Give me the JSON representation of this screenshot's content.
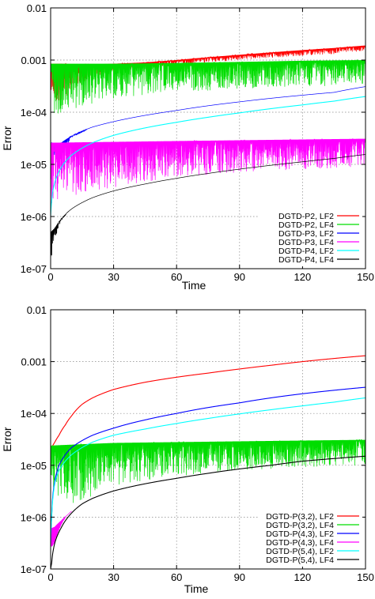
{
  "chart_data": [
    {
      "type": "line",
      "xlabel": "Time",
      "ylabel": "Error",
      "yscale": "log",
      "xlim": [
        0,
        150
      ],
      "ylim": [
        1e-07,
        0.01
      ],
      "grid": true,
      "legend_position": "bottom-right",
      "x_ticks": [
        "0",
        "30",
        "60",
        "90",
        "120",
        "150"
      ],
      "y_ticks": [
        "1e-07",
        "1e-06",
        "1e-05",
        "1e-04",
        "0.001",
        "0.01"
      ],
      "series": [
        {
          "name": "DGTD-P2, LF2",
          "color": "#ff0000",
          "x": [
            0,
            5,
            15,
            30,
            45,
            60,
            75,
            90,
            105,
            120,
            135,
            150
          ],
          "y": [
            0.00085,
            0.00085,
            0.00082,
            0.00085,
            0.0009,
            0.001,
            0.00113,
            0.00126,
            0.0014,
            0.00155,
            0.0017,
            0.0019
          ],
          "band_min": [
            0.0001,
            0.00015,
            0.00035,
            0.0006,
            0.0007,
            0.0008,
            0.0009,
            0.001,
            0.0011,
            0.0012,
            0.0013,
            0.0015
          ]
        },
        {
          "name": "DGTD-P2, LF4",
          "color": "#00dd00",
          "x": [
            0,
            15,
            30,
            60,
            90,
            120,
            150
          ],
          "y": [
            0.00085,
            0.00085,
            0.00085,
            0.00088,
            0.00092,
            0.00097,
            0.001
          ],
          "band_min": [
            8e-05,
            0.00013,
            0.00018,
            0.00024,
            0.00028,
            0.00031,
            0.00033
          ]
        },
        {
          "name": "DGTD-P3, LF2",
          "color": "#0000ff",
          "x": [
            0,
            5,
            10,
            20,
            30,
            45,
            60,
            75,
            90,
            105,
            120,
            135,
            150
          ],
          "y": [
            2.6e-05,
            2.6e-05,
            3.5e-05,
            5.2e-05,
            6.6e-05,
            8.7e-05,
            0.000108,
            0.000133,
            0.000158,
            0.000185,
            0.000212,
            0.00024,
            0.00031
          ],
          "band_min": [
            1.2e-05,
            1.3e-05,
            3.2e-05,
            5e-05,
            6.5e-05,
            8.6e-05,
            0.000107,
            0.000132,
            0.000157,
            0.000184,
            0.000211,
            0.000239,
            0.00031
          ]
        },
        {
          "name": "DGTD-P3, LF4",
          "color": "#ff00ff",
          "x": [
            0,
            30,
            60,
            90,
            120,
            150
          ],
          "y": [
            2.6e-05,
            2.7e-05,
            2.8e-05,
            2.9e-05,
            3e-05,
            3.1e-05
          ],
          "band_min": [
            1.6e-06,
            3.5e-06,
            5.5e-06,
            7e-06,
            8e-06,
            9e-06
          ]
        },
        {
          "name": "DGTD-P4, LF2",
          "color": "#00ffff",
          "x": [
            0,
            1,
            3,
            6,
            10,
            20,
            30,
            45,
            60,
            75,
            90,
            105,
            120,
            135,
            150
          ],
          "y": [
            1e-06,
            3e-06,
            6e-06,
            1e-05,
            1.5e-05,
            2.6e-05,
            3.6e-05,
            5e-05,
            6.4e-05,
            8e-05,
            9.7e-05,
            0.000117,
            0.000138,
            0.000163,
            0.0002
          ]
        },
        {
          "name": "DGTD-P4, LF4",
          "color": "#000000",
          "x": [
            0,
            2,
            5,
            10,
            20,
            30,
            45,
            60,
            75,
            90,
            105,
            120,
            135,
            150
          ],
          "y": [
            5e-07,
            6e-07,
            9e-07,
            1.4e-06,
            2.3e-06,
            3.1e-06,
            4.2e-06,
            5.4e-06,
            6.7e-06,
            8.1e-06,
            9.6e-06,
            1.12e-05,
            1.3e-05,
            1.55e-05
          ],
          "band_min": [
            1e-07,
            3e-07,
            8e-07,
            1.4e-06,
            2.3e-06,
            3.1e-06,
            4.2e-06,
            5.4e-06,
            6.7e-06,
            8.1e-06,
            9.6e-06,
            1.12e-05,
            1.3e-05,
            1.55e-05
          ]
        }
      ]
    },
    {
      "type": "line",
      "xlabel": "Time",
      "ylabel": "Error",
      "yscale": "log",
      "xlim": [
        0,
        150
      ],
      "ylim": [
        1e-07,
        0.01
      ],
      "grid": true,
      "legend_position": "bottom-right",
      "x_ticks": [
        "0",
        "30",
        "60",
        "90",
        "120",
        "150"
      ],
      "y_ticks": [
        "1e-07",
        "1e-06",
        "1e-05",
        "1e-04",
        "0.001",
        "0.01"
      ],
      "series": [
        {
          "name": "DGTD-P(3,2), LF2",
          "color": "#ff0000",
          "x": [
            0,
            1,
            2,
            4,
            7,
            10,
            15,
            20,
            30,
            45,
            60,
            75,
            90,
            105,
            120,
            135,
            150
          ],
          "y": [
            1.5e-05,
            2.4e-05,
            2.8e-05,
            3.8e-05,
            6e-05,
            9e-05,
            0.00015,
            0.0002,
            0.00029,
            0.0004,
            0.0005,
            0.0006,
            0.00072,
            0.00085,
            0.001,
            0.00115,
            0.0013
          ]
        },
        {
          "name": "DGTD-P(3,2), LF4",
          "color": "#00dd00",
          "x": [
            0,
            10,
            20,
            30,
            60,
            90,
            120,
            150
          ],
          "y": [
            2.4e-05,
            2.5e-05,
            2.6e-05,
            2.7e-05,
            2.8e-05,
            2.9e-05,
            3e-05,
            3.1e-05
          ],
          "band_min": [
            3e-06,
            1.8e-06,
            2.5e-06,
            4e-06,
            6e-06,
            8e-06,
            9e-06,
            1e-05
          ]
        },
        {
          "name": "DGTD-P(4,3), LF2",
          "color": "#0000ff",
          "x": [
            0,
            0.5,
            1,
            2,
            4,
            7,
            10,
            15,
            20,
            30,
            45,
            60,
            75,
            90,
            105,
            120,
            135,
            150
          ],
          "y": [
            3e-07,
            1e-06,
            2.5e-06,
            5e-06,
            1e-05,
            1.6e-05,
            2.2e-05,
            3e-05,
            3.8e-05,
            5.2e-05,
            7.5e-05,
            0.0001,
            0.00013,
            0.00016,
            0.0002,
            0.00024,
            0.00028,
            0.00032
          ]
        },
        {
          "name": "DGTD-P(4,3), LF4",
          "color": "#ff00ff",
          "x": [
            0,
            2,
            5,
            8,
            10
          ],
          "y": [
            6e-07,
            6.5e-07,
            8.5e-07,
            1.1e-06,
            1.3e-06
          ],
          "band_min": [
            2.5e-07,
            3e-07,
            7e-07,
            1.1e-06,
            1.3e-06
          ]
        },
        {
          "name": "DGTD-P(5,4), LF2",
          "color": "#00ffff",
          "x": [
            0,
            0.5,
            1,
            2,
            4,
            7,
            10,
            15,
            20,
            30,
            45,
            60,
            75,
            90,
            105,
            120,
            135,
            150
          ],
          "y": [
            3e-07,
            1e-06,
            2.2e-06,
            4.5e-06,
            8e-06,
            1.2e-05,
            1.6e-05,
            2.2e-05,
            2.8e-05,
            3.8e-05,
            5e-05,
            6.4e-05,
            8e-05,
            9.8e-05,
            0.000118,
            0.00014,
            0.000165,
            0.0002
          ]
        },
        {
          "name": "DGTD-P(5,4), LF4",
          "color": "#000000",
          "x": [
            0,
            0.5,
            1,
            2,
            3,
            5,
            7,
            10,
            15,
            20,
            30,
            45,
            60,
            75,
            90,
            105,
            120,
            135,
            150
          ],
          "y": [
            1e-07,
            1.3e-07,
            2e-07,
            3.2e-07,
            4.2e-07,
            6.2e-07,
            8.5e-07,
            1.2e-06,
            1.8e-06,
            2.3e-06,
            3.2e-06,
            4.4e-06,
            5.6e-06,
            7e-06,
            8.5e-06,
            1e-05,
            1.2e-05,
            1.35e-05,
            1.5e-05
          ]
        }
      ]
    }
  ]
}
